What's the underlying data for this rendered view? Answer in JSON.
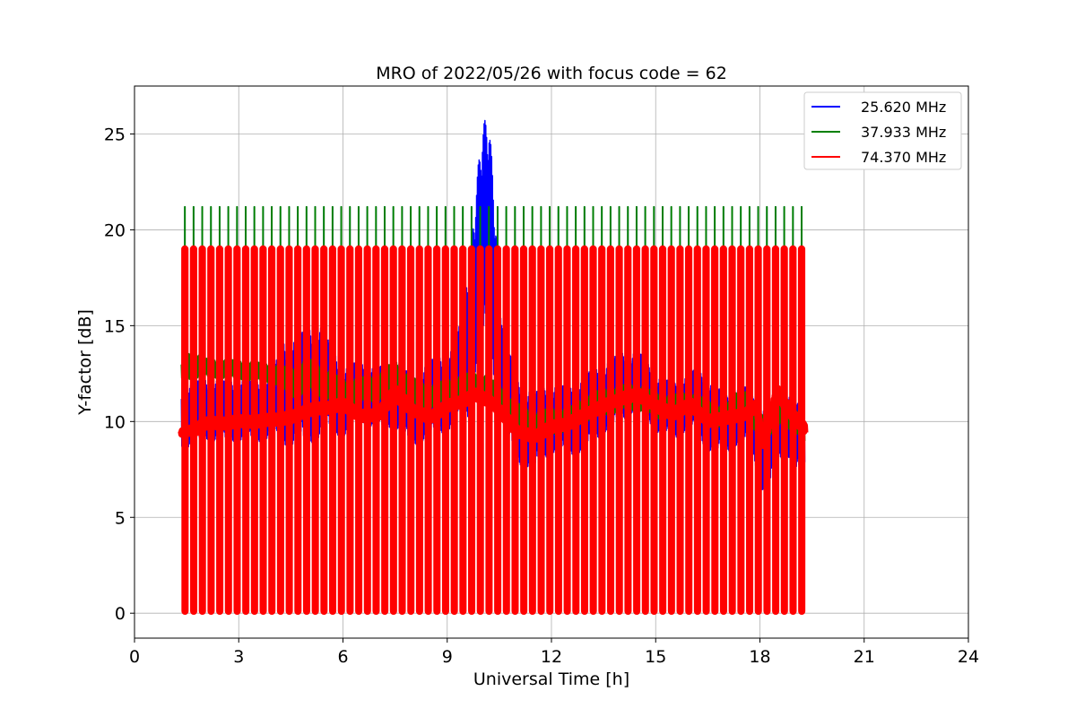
{
  "chart_data": {
    "type": "line",
    "title": "MRO of 2022/05/26 with focus code = 62",
    "xlabel": "Universal Time [h]",
    "ylabel": "Y-factor [dB]",
    "xlim": [
      0,
      24
    ],
    "ylim": [
      -1.3,
      27.5
    ],
    "xticks": [
      0,
      3,
      6,
      9,
      12,
      15,
      18,
      21,
      24
    ],
    "yticks": [
      0,
      5,
      10,
      15,
      20,
      25
    ],
    "grid": true,
    "legend_position": "top-right",
    "calibration_pulses": {
      "start": 1.45,
      "period": 0.25,
      "end": 19.3,
      "peak_values": [
        21.2,
        21.2,
        19.0
      ],
      "floor_value": 0.1
    },
    "series": [
      {
        "name": "25.620 MHz",
        "color": "#0000ff",
        "line_width": 1.5,
        "x": [
          1.35,
          1.5,
          2.0,
          2.5,
          3.0,
          3.5,
          4.0,
          4.2,
          4.5,
          5.0,
          5.2,
          5.5,
          6.0,
          6.5,
          7.0,
          7.5,
          8.0,
          8.5,
          9.0,
          9.3,
          9.6,
          9.8,
          10.0,
          10.2,
          10.4,
          10.6,
          11.0,
          11.5,
          12.0,
          12.5,
          13.0,
          13.5,
          14.0,
          14.5,
          15.0,
          15.5,
          16.0,
          16.5,
          17.0,
          17.5,
          17.8,
          18.0,
          18.2,
          18.5,
          18.8,
          19.0,
          19.3
        ],
        "y": [
          10.3,
          10.2,
          10.7,
          10.5,
          10.6,
          10.5,
          10.8,
          11.5,
          11.6,
          11.8,
          12.3,
          12.0,
          11.0,
          11.6,
          11.2,
          11.5,
          10.5,
          11.2,
          11.5,
          12.2,
          14.0,
          17.0,
          19.5,
          20.0,
          16.0,
          12.5,
          10.0,
          9.5,
          10.2,
          10.0,
          10.5,
          11.2,
          11.8,
          12.2,
          11.0,
          10.5,
          11.2,
          10.5,
          9.8,
          10.5,
          9.8,
          9.0,
          8.2,
          9.8,
          10.0,
          9.2,
          9.0
        ],
        "amplitude": [
          1.6,
          1.6,
          1.6,
          1.6,
          1.6,
          1.6,
          1.6,
          2.8,
          2.8,
          3.0,
          3.3,
          2.5,
          1.8,
          1.6,
          1.6,
          1.8,
          1.8,
          2.0,
          2.0,
          2.3,
          3.8,
          4.5,
          6.0,
          6.0,
          4.5,
          2.5,
          2.2,
          2.0,
          1.8,
          1.8,
          2.0,
          1.8,
          1.8,
          1.5,
          1.5,
          1.5,
          1.5,
          2.0,
          1.5,
          1.5,
          1.5,
          2.3,
          2.3,
          1.8,
          1.8,
          1.8,
          1.8
        ]
      },
      {
        "name": "37.933 MHz",
        "color": "#008000",
        "line_width": 1.8,
        "x": [
          1.35,
          1.6,
          2.0,
          3.0,
          4.0,
          4.5,
          5.0,
          5.5,
          6.0,
          6.5,
          7.0,
          7.5,
          8.0,
          8.5,
          9.0,
          9.5,
          10.0,
          10.5,
          11.0,
          11.5,
          12.0,
          12.5,
          13.0,
          13.5,
          14.0,
          14.5,
          15.0,
          15.5,
          16.0,
          16.5,
          17.0,
          17.5,
          18.0,
          18.5,
          19.0,
          19.3
        ],
        "y": [
          12.6,
          13.0,
          12.8,
          12.7,
          12.5,
          12.0,
          12.4,
          12.0,
          11.5,
          11.6,
          11.8,
          12.3,
          11.5,
          11.3,
          11.6,
          11.8,
          12.0,
          11.3,
          10.2,
          9.8,
          10.0,
          10.1,
          10.7,
          11.0,
          11.2,
          11.3,
          10.8,
          10.8,
          11.0,
          10.5,
          10.2,
          11.3,
          9.5,
          10.5,
          10.2,
          9.5
        ],
        "amplitude": [
          0.4,
          0.8,
          0.5,
          0.5,
          0.5,
          0.8,
          0.9,
          0.8,
          0.7,
          0.7,
          0.7,
          0.9,
          0.8,
          0.6,
          0.6,
          0.7,
          0.6,
          0.6,
          0.8,
          0.7,
          0.7,
          0.6,
          0.7,
          0.7,
          0.7,
          0.7,
          0.7,
          0.6,
          0.6,
          0.6,
          0.6,
          0.7,
          0.8,
          0.8,
          0.7,
          0.6
        ]
      },
      {
        "name": "74.370 MHz",
        "color": "#ff0000",
        "line_width": 8,
        "x": [
          1.35,
          1.8,
          2.0,
          2.5,
          3.0,
          3.5,
          4.0,
          4.5,
          5.0,
          5.5,
          6.0,
          6.5,
          7.0,
          7.5,
          8.0,
          8.5,
          9.0,
          9.5,
          9.8,
          10.2,
          10.5,
          11.0,
          11.5,
          12.0,
          12.5,
          13.0,
          13.5,
          14.0,
          14.5,
          15.0,
          15.5,
          16.0,
          16.5,
          17.0,
          17.5,
          17.9,
          18.1,
          18.5,
          19.0,
          19.3
        ],
        "y": [
          9.4,
          9.6,
          9.9,
          9.9,
          10.0,
          10.0,
          10.1,
          10.2,
          10.6,
          10.7,
          10.9,
          10.3,
          10.3,
          11.5,
          10.6,
          10.2,
          10.8,
          11.1,
          11.4,
          11.1,
          10.6,
          9.5,
          9.2,
          9.7,
          9.9,
          10.4,
          10.8,
          11.2,
          11.4,
          10.8,
          10.4,
          10.9,
          10.0,
          10.2,
          10.3,
          10.8,
          8.8,
          11.5,
          10.2,
          9.6
        ],
        "amplitude": [
          0.1,
          0.2,
          0.2,
          0.2,
          0.2,
          0.2,
          0.2,
          0.2,
          0.2,
          0.2,
          0.2,
          0.2,
          0.2,
          0.3,
          0.2,
          0.2,
          0.2,
          0.2,
          0.2,
          0.2,
          0.2,
          0.2,
          0.2,
          0.2,
          0.2,
          0.2,
          0.2,
          0.2,
          0.2,
          0.2,
          0.2,
          0.2,
          0.2,
          0.2,
          0.2,
          0.2,
          0.2,
          0.3,
          0.2,
          0.2
        ]
      }
    ]
  }
}
